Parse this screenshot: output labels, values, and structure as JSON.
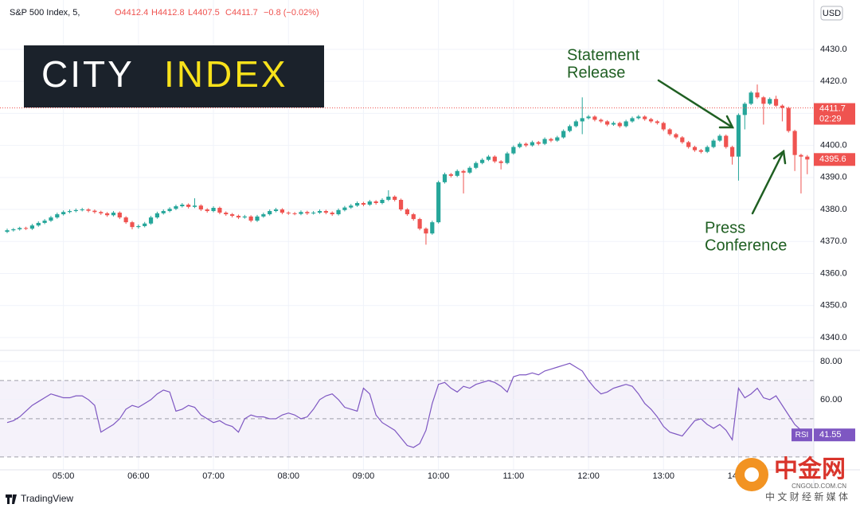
{
  "chart_data": {
    "type": "candlestick",
    "header": {
      "symbol": "S&P 500 Index, 5,",
      "open": "O4412.4",
      "high": "H4412.8",
      "low": "L4407.5",
      "close": "C4411.7",
      "change": "−0.8 (−0.02%)"
    },
    "currency": "USD",
    "colors": {
      "up": "#26a69a",
      "down": "#ef5350"
    },
    "grid": true,
    "ylim": [
      4336,
      4445.4
    ],
    "yticks": [
      {
        "value": 4340,
        "label": "4340.0"
      },
      {
        "value": 4350,
        "label": "4350.0"
      },
      {
        "value": 4360,
        "label": "4360.0"
      },
      {
        "value": 4370,
        "label": "4370.0"
      },
      {
        "value": 4380,
        "label": "4380.0"
      },
      {
        "value": 4390,
        "label": "4390.0"
      },
      {
        "value": 4400,
        "label": "4400.0"
      },
      {
        "value": 4410,
        "label": "4410.0"
      },
      {
        "value": 4420,
        "label": "4420.0"
      },
      {
        "value": 4430,
        "label": "4430.0"
      }
    ],
    "price_line": 4411.7,
    "countdown": "02:29",
    "categories": [
      null,
      null,
      null,
      null,
      null,
      null,
      null,
      null,
      null,
      "05:00",
      null,
      null,
      null,
      null,
      null,
      null,
      null,
      null,
      null,
      null,
      null,
      "06:00",
      null,
      null,
      null,
      null,
      null,
      null,
      null,
      null,
      null,
      null,
      null,
      "07:00",
      null,
      null,
      null,
      null,
      null,
      null,
      null,
      null,
      null,
      null,
      null,
      "08:00",
      null,
      null,
      null,
      null,
      null,
      null,
      null,
      null,
      null,
      null,
      null,
      "09:00",
      null,
      null,
      null,
      null,
      null,
      null,
      null,
      null,
      null,
      null,
      null,
      "10:00",
      null,
      null,
      null,
      null,
      null,
      null,
      null,
      null,
      null,
      null,
      null,
      "11:00",
      null,
      null,
      null,
      null,
      null,
      null,
      null,
      null,
      null,
      null,
      null,
      "12:00",
      null,
      null,
      null,
      null,
      null,
      null,
      null,
      null,
      null,
      null,
      null,
      "13:00",
      null,
      null,
      null,
      null,
      null,
      null,
      null,
      null,
      null,
      null,
      null,
      "14:00",
      null,
      null,
      null,
      null,
      null,
      null,
      null,
      null,
      null,
      null,
      null
    ],
    "ohlc": [
      [
        4373.0,
        4374.0,
        4372.6,
        4373.5
      ],
      [
        4373.5,
        4374.2,
        4373.1,
        4373.8
      ],
      [
        4373.8,
        4374.6,
        4373.4,
        4374.2
      ],
      [
        4374.2,
        4374.6,
        4373.6,
        4374.0
      ],
      [
        4374.0,
        4375.5,
        4373.6,
        4375.0
      ],
      [
        4375.0,
        4376.3,
        4374.6,
        4375.8
      ],
      [
        4375.8,
        4377.0,
        4375.4,
        4376.5
      ],
      [
        4376.5,
        4378.0,
        4376.1,
        4377.5
      ],
      [
        4377.5,
        4379.0,
        4377.1,
        4378.5
      ],
      [
        4378.5,
        4379.7,
        4378.1,
        4379.2
      ],
      [
        4379.2,
        4380.0,
        4378.8,
        4379.5
      ],
      [
        4379.5,
        4380.3,
        4379.1,
        4379.8
      ],
      [
        4379.8,
        4380.5,
        4379.4,
        4380.0
      ],
      [
        4380.0,
        4380.4,
        4379.1,
        4379.6
      ],
      [
        4379.6,
        4380.0,
        4378.7,
        4379.2
      ],
      [
        4379.2,
        4379.6,
        4378.3,
        4378.8
      ],
      [
        4378.8,
        4379.2,
        4377.7,
        4378.2
      ],
      [
        4378.2,
        4379.5,
        4377.8,
        4379.0
      ],
      [
        4379.0,
        4379.4,
        4377.0,
        4377.5
      ],
      [
        4377.5,
        4377.9,
        4375.5,
        4376.0
      ],
      [
        4376.0,
        4376.4,
        4373.8,
        4374.5
      ],
      [
        4374.5,
        4375.3,
        4374.0,
        4374.8
      ],
      [
        4374.8,
        4376.1,
        4374.4,
        4375.6
      ],
      [
        4375.6,
        4378.0,
        4375.2,
        4377.5
      ],
      [
        4377.5,
        4379.3,
        4377.1,
        4378.8
      ],
      [
        4378.8,
        4380.0,
        4378.4,
        4379.5
      ],
      [
        4379.5,
        4380.7,
        4379.1,
        4380.2
      ],
      [
        4380.2,
        4381.5,
        4379.8,
        4381.0
      ],
      [
        4381.0,
        4382.0,
        4380.6,
        4381.5
      ],
      [
        4381.5,
        4381.9,
        4380.3,
        4380.8
      ],
      [
        4380.8,
        4383.5,
        4380.4,
        4381.2
      ],
      [
        4381.2,
        4381.6,
        4379.5,
        4380.0
      ],
      [
        4380.0,
        4380.4,
        4379.0,
        4379.5
      ],
      [
        4379.5,
        4381.0,
        4379.1,
        4380.5
      ],
      [
        4380.5,
        4380.9,
        4378.5,
        4379.0
      ],
      [
        4379.0,
        4379.4,
        4378.0,
        4378.5
      ],
      [
        4378.5,
        4378.9,
        4377.5,
        4378.0
      ],
      [
        4378.0,
        4378.4,
        4377.0,
        4377.5
      ],
      [
        4377.5,
        4378.3,
        4377.1,
        4377.8
      ],
      [
        4377.8,
        4378.2,
        4376.0,
        4376.5
      ],
      [
        4376.5,
        4378.3,
        4376.1,
        4377.8
      ],
      [
        4377.8,
        4379.0,
        4377.4,
        4378.5
      ],
      [
        4378.5,
        4380.0,
        4378.1,
        4379.5
      ],
      [
        4379.5,
        4380.5,
        4379.1,
        4380.0
      ],
      [
        4380.0,
        4380.4,
        4378.5,
        4379.0
      ],
      [
        4379.0,
        4379.4,
        4378.3,
        4378.8
      ],
      [
        4378.8,
        4379.2,
        4378.2,
        4378.6
      ],
      [
        4378.6,
        4379.7,
        4378.2,
        4379.2
      ],
      [
        4379.2,
        4379.6,
        4378.3,
        4378.8
      ],
      [
        4378.8,
        4379.5,
        4378.4,
        4379.0
      ],
      [
        4379.0,
        4380.0,
        4378.6,
        4379.5
      ],
      [
        4379.5,
        4379.9,
        4378.5,
        4379.0
      ],
      [
        4379.0,
        4379.4,
        4378.0,
        4378.5
      ],
      [
        4378.5,
        4380.3,
        4378.1,
        4379.8
      ],
      [
        4379.8,
        4381.1,
        4379.4,
        4380.6
      ],
      [
        4380.6,
        4381.7,
        4380.2,
        4381.2
      ],
      [
        4381.2,
        4382.5,
        4380.8,
        4382.0
      ],
      [
        4382.0,
        4382.4,
        4381.0,
        4381.5
      ],
      [
        4381.5,
        4383.0,
        4381.1,
        4382.5
      ],
      [
        4382.5,
        4382.9,
        4381.5,
        4382.0
      ],
      [
        4382.0,
        4383.5,
        4381.6,
        4383.0
      ],
      [
        4383.0,
        4386.0,
        4382.6,
        4384.0
      ],
      [
        4384.0,
        4384.4,
        4382.5,
        4383.0
      ],
      [
        4383.0,
        4383.4,
        4379.5,
        4380.0
      ],
      [
        4380.0,
        4380.4,
        4378.0,
        4378.5
      ],
      [
        4378.5,
        4378.9,
        4376.5,
        4377.0
      ],
      [
        4377.0,
        4377.4,
        4373.5,
        4374.0
      ],
      [
        4374.0,
        4374.4,
        4369.0,
        4372.5
      ],
      [
        4372.5,
        4376.5,
        4372.1,
        4376.0
      ],
      [
        4376.0,
        4389.0,
        4375.6,
        4388.5
      ],
      [
        4388.5,
        4391.5,
        4388.1,
        4391.0
      ],
      [
        4391.0,
        4391.4,
        4390.0,
        4390.5
      ],
      [
        4390.5,
        4392.5,
        4390.1,
        4392.0
      ],
      [
        4392.0,
        4392.4,
        4385.0,
        4391.5
      ],
      [
        4391.5,
        4393.5,
        4391.1,
        4393.0
      ],
      [
        4393.0,
        4395.0,
        4392.6,
        4394.5
      ],
      [
        4394.5,
        4396.0,
        4394.1,
        4395.5
      ],
      [
        4395.5,
        4397.0,
        4395.1,
        4396.5
      ],
      [
        4396.5,
        4396.9,
        4394.5,
        4395.0
      ],
      [
        4395.0,
        4395.4,
        4392.5,
        4394.5
      ],
      [
        4394.5,
        4398.0,
        4394.1,
        4397.5
      ],
      [
        4397.5,
        4400.0,
        4397.1,
        4399.5
      ],
      [
        4399.5,
        4401.0,
        4399.1,
        4400.5
      ],
      [
        4400.5,
        4400.9,
        4399.5,
        4400.0
      ],
      [
        4400.0,
        4401.5,
        4399.6,
        4401.0
      ],
      [
        4401.0,
        4401.4,
        4400.0,
        4400.5
      ],
      [
        4400.5,
        4402.5,
        4400.1,
        4402.0
      ],
      [
        4402.0,
        4402.4,
        4401.0,
        4401.5
      ],
      [
        4401.5,
        4403.0,
        4401.1,
        4402.5
      ],
      [
        4402.5,
        4405.0,
        4402.1,
        4404.5
      ],
      [
        4404.5,
        4406.5,
        4404.1,
        4406.0
      ],
      [
        4406.0,
        4408.0,
        4405.6,
        4407.5
      ],
      [
        4407.5,
        4415.0,
        4403.5,
        4408.5
      ],
      [
        4408.5,
        4409.5,
        4408.1,
        4409.0
      ],
      [
        4409.0,
        4409.4,
        4407.5,
        4408.0
      ],
      [
        4408.0,
        4408.4,
        4407.0,
        4407.5
      ],
      [
        4407.5,
        4407.9,
        4406.0,
        4406.5
      ],
      [
        4406.5,
        4407.5,
        4406.1,
        4407.0
      ],
      [
        4407.0,
        4407.4,
        4405.5,
        4406.0
      ],
      [
        4406.0,
        4408.0,
        4405.6,
        4407.5
      ],
      [
        4407.5,
        4409.0,
        4407.1,
        4408.5
      ],
      [
        4408.5,
        4409.5,
        4408.1,
        4409.0
      ],
      [
        4409.0,
        4409.4,
        4407.7,
        4408.2
      ],
      [
        4408.2,
        4408.6,
        4407.0,
        4407.5
      ],
      [
        4407.5,
        4407.9,
        4406.5,
        4407.0
      ],
      [
        4407.0,
        4407.4,
        4404.5,
        4405.0
      ],
      [
        4405.0,
        4405.4,
        4403.0,
        4403.5
      ],
      [
        4403.5,
        4403.9,
        4402.0,
        4402.5
      ],
      [
        4402.5,
        4402.9,
        4400.5,
        4401.0
      ],
      [
        4401.0,
        4401.4,
        4399.0,
        4399.5
      ],
      [
        4399.5,
        4399.9,
        4398.0,
        4398.5
      ],
      [
        4398.5,
        4398.9,
        4397.5,
        4398.0
      ],
      [
        4398.0,
        4400.0,
        4397.6,
        4399.5
      ],
      [
        4399.5,
        4402.0,
        4399.1,
        4401.5
      ],
      [
        4401.5,
        4403.5,
        4401.1,
        4403.0
      ],
      [
        4403.0,
        4403.4,
        4399.0,
        4399.5
      ],
      [
        4399.5,
        4399.9,
        4394.0,
        4396.5
      ],
      [
        4396.5,
        4410.0,
        4389.0,
        4409.5
      ],
      [
        4409.5,
        4413.5,
        4405.0,
        4413.0
      ],
      [
        4413.0,
        4417.0,
        4412.6,
        4416.5
      ],
      [
        4416.5,
        4419.0,
        4414.5,
        4415.0
      ],
      [
        4415.0,
        4415.4,
        4406.5,
        4413.0
      ],
      [
        4413.0,
        4415.0,
        4412.6,
        4414.5
      ],
      [
        4414.5,
        4415.5,
        4412.0,
        4412.4
      ],
      [
        4412.4,
        4412.8,
        4407.5,
        4411.7
      ],
      [
        4411.7,
        4412.1,
        4404.0,
        4404.5
      ],
      [
        4404.5,
        4404.9,
        4392.0,
        4397.0
      ],
      [
        4397.0,
        4397.4,
        4385.0,
        4396.5
      ],
      [
        4396.5,
        4397.0,
        4391.0,
        4395.6
      ]
    ],
    "rsi": {
      "name": "RSI",
      "color": "#7e57c2",
      "ylim": [
        23.3,
        85.8
      ],
      "yticks": [
        {
          "value": 60,
          "label": "60.00"
        },
        {
          "value": 80,
          "label": "80.00"
        }
      ],
      "levels": [
        70,
        50,
        30
      ],
      "values": [
        48,
        49,
        51,
        54,
        57,
        59,
        61,
        63,
        62,
        61,
        61,
        62,
        62,
        60,
        57,
        43,
        45,
        47,
        50,
        55,
        57,
        56,
        58,
        60,
        63,
        65,
        64,
        54,
        55,
        57,
        56,
        52,
        50,
        48,
        49,
        47,
        46,
        43,
        50,
        52,
        51,
        51,
        50,
        50,
        52,
        53,
        52,
        50,
        51,
        55,
        60,
        62,
        63,
        60,
        56,
        55,
        54,
        66,
        63,
        52,
        48,
        46,
        44,
        40,
        36,
        35,
        37,
        44,
        58,
        68,
        69,
        66,
        64,
        67,
        66,
        68,
        69,
        70,
        69,
        67,
        64,
        72,
        73,
        73,
        74,
        73,
        75,
        76,
        77,
        78,
        79,
        77,
        75,
        70,
        66,
        63,
        64,
        66,
        67,
        68,
        67,
        63,
        58,
        55,
        51,
        46,
        43,
        42,
        41,
        45,
        49,
        50,
        47,
        45,
        47,
        44,
        39,
        66,
        61,
        63,
        66,
        61,
        60,
        62,
        57,
        52,
        47,
        44,
        41.55
      ]
    },
    "annotations": [
      {
        "lines": [
          "Statement",
          "Release"
        ]
      },
      {
        "lines": [
          "Press",
          "Conference"
        ]
      }
    ]
  },
  "branding": {
    "logo_left": "CITY",
    "logo_right": "INDEX",
    "footer": "TradingView",
    "watermark": "中金网",
    "watermark_site": "CNGOLD.COM.CN",
    "watermark_tagline": "中 文 财 经 新 媒 体"
  }
}
